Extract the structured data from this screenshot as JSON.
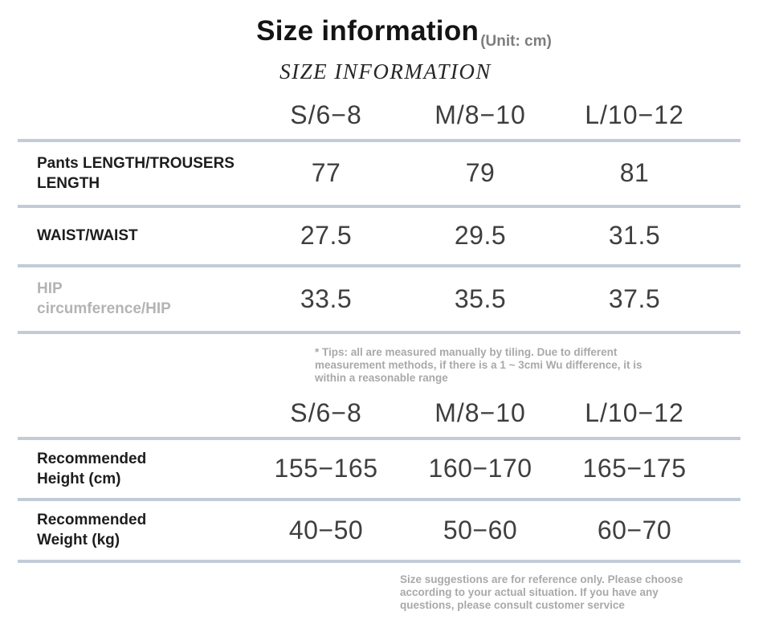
{
  "header": {
    "title": "Size information",
    "unit": "(Unit: cm)",
    "subtitle": "SIZE INFORMATION"
  },
  "colors": {
    "divider": "#c2ccd8",
    "title_text": "#141414",
    "value_text": "#3f3f3f",
    "muted_label": "#b4b4b4",
    "note_text": "#a9a9a9"
  },
  "size_table": {
    "columns": [
      "S/6−8",
      "M/8−10",
      "L/10−12"
    ],
    "rows": [
      {
        "label": "Pants LENGTH/TROUSERS LENGTH",
        "lines": [
          "Pants LENGTH/TROUSERS",
          "LENGTH"
        ],
        "values": [
          "77",
          "79",
          "81"
        ]
      },
      {
        "label": "WAIST/WAIST",
        "lines": [
          "WAIST/WAIST"
        ],
        "values": [
          "27.5",
          "29.5",
          "31.5"
        ]
      },
      {
        "label": "HIP circumference/HIP",
        "lines": [
          "HIP",
          "circumference/HIP"
        ],
        "values": [
          "33.5",
          "35.5",
          "37.5"
        ]
      }
    ],
    "tip_lines": [
      "* Tips: all are measured manually by tiling. Due to different",
      "measurement methods, if there is a 1 ~ 3cmi Wu difference, it is",
      "within a reasonable range"
    ]
  },
  "recommend_table": {
    "columns": [
      "S/6−8",
      "M/8−10",
      "L/10−12"
    ],
    "rows": [
      {
        "label": "Recommended Height (cm)",
        "lines": [
          "Recommended",
          "Height (cm)"
        ],
        "values": [
          "155−165",
          "160−170",
          "165−175"
        ]
      },
      {
        "label": "Recommended Weight (kg)",
        "lines": [
          "Recommended",
          "Weight (kg)"
        ],
        "values": [
          "40−50",
          "50−60",
          "60−70"
        ]
      }
    ],
    "note_lines": [
      "Size suggestions are for reference only. Please choose",
      "according to your actual situation. If you have any",
      "questions, please consult customer service"
    ]
  }
}
